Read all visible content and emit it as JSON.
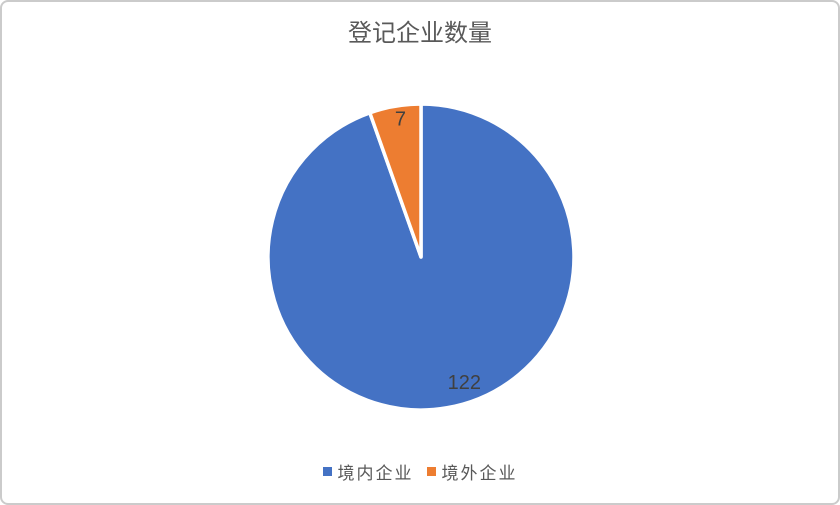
{
  "chart_data": {
    "type": "pie",
    "title": "登记企业数量",
    "categories": [
      "境内企业",
      "境外企业"
    ],
    "values": [
      122,
      7
    ],
    "data_labels": [
      "122",
      "7"
    ],
    "colors": [
      "#4472C4",
      "#ED7D31"
    ],
    "slice_border_color": "#FFFFFF",
    "label_color": "#404040",
    "title_color": "#595959",
    "legend_text_color": "#595959",
    "legend_position": "bottom",
    "start_angle_deg": 0,
    "direction": "clockwise",
    "label_hints": [
      {
        "angle_deg": 161.0,
        "radius_frac": 0.87
      },
      {
        "angle_deg": 351.5,
        "radius_frac": 0.91
      }
    ]
  }
}
